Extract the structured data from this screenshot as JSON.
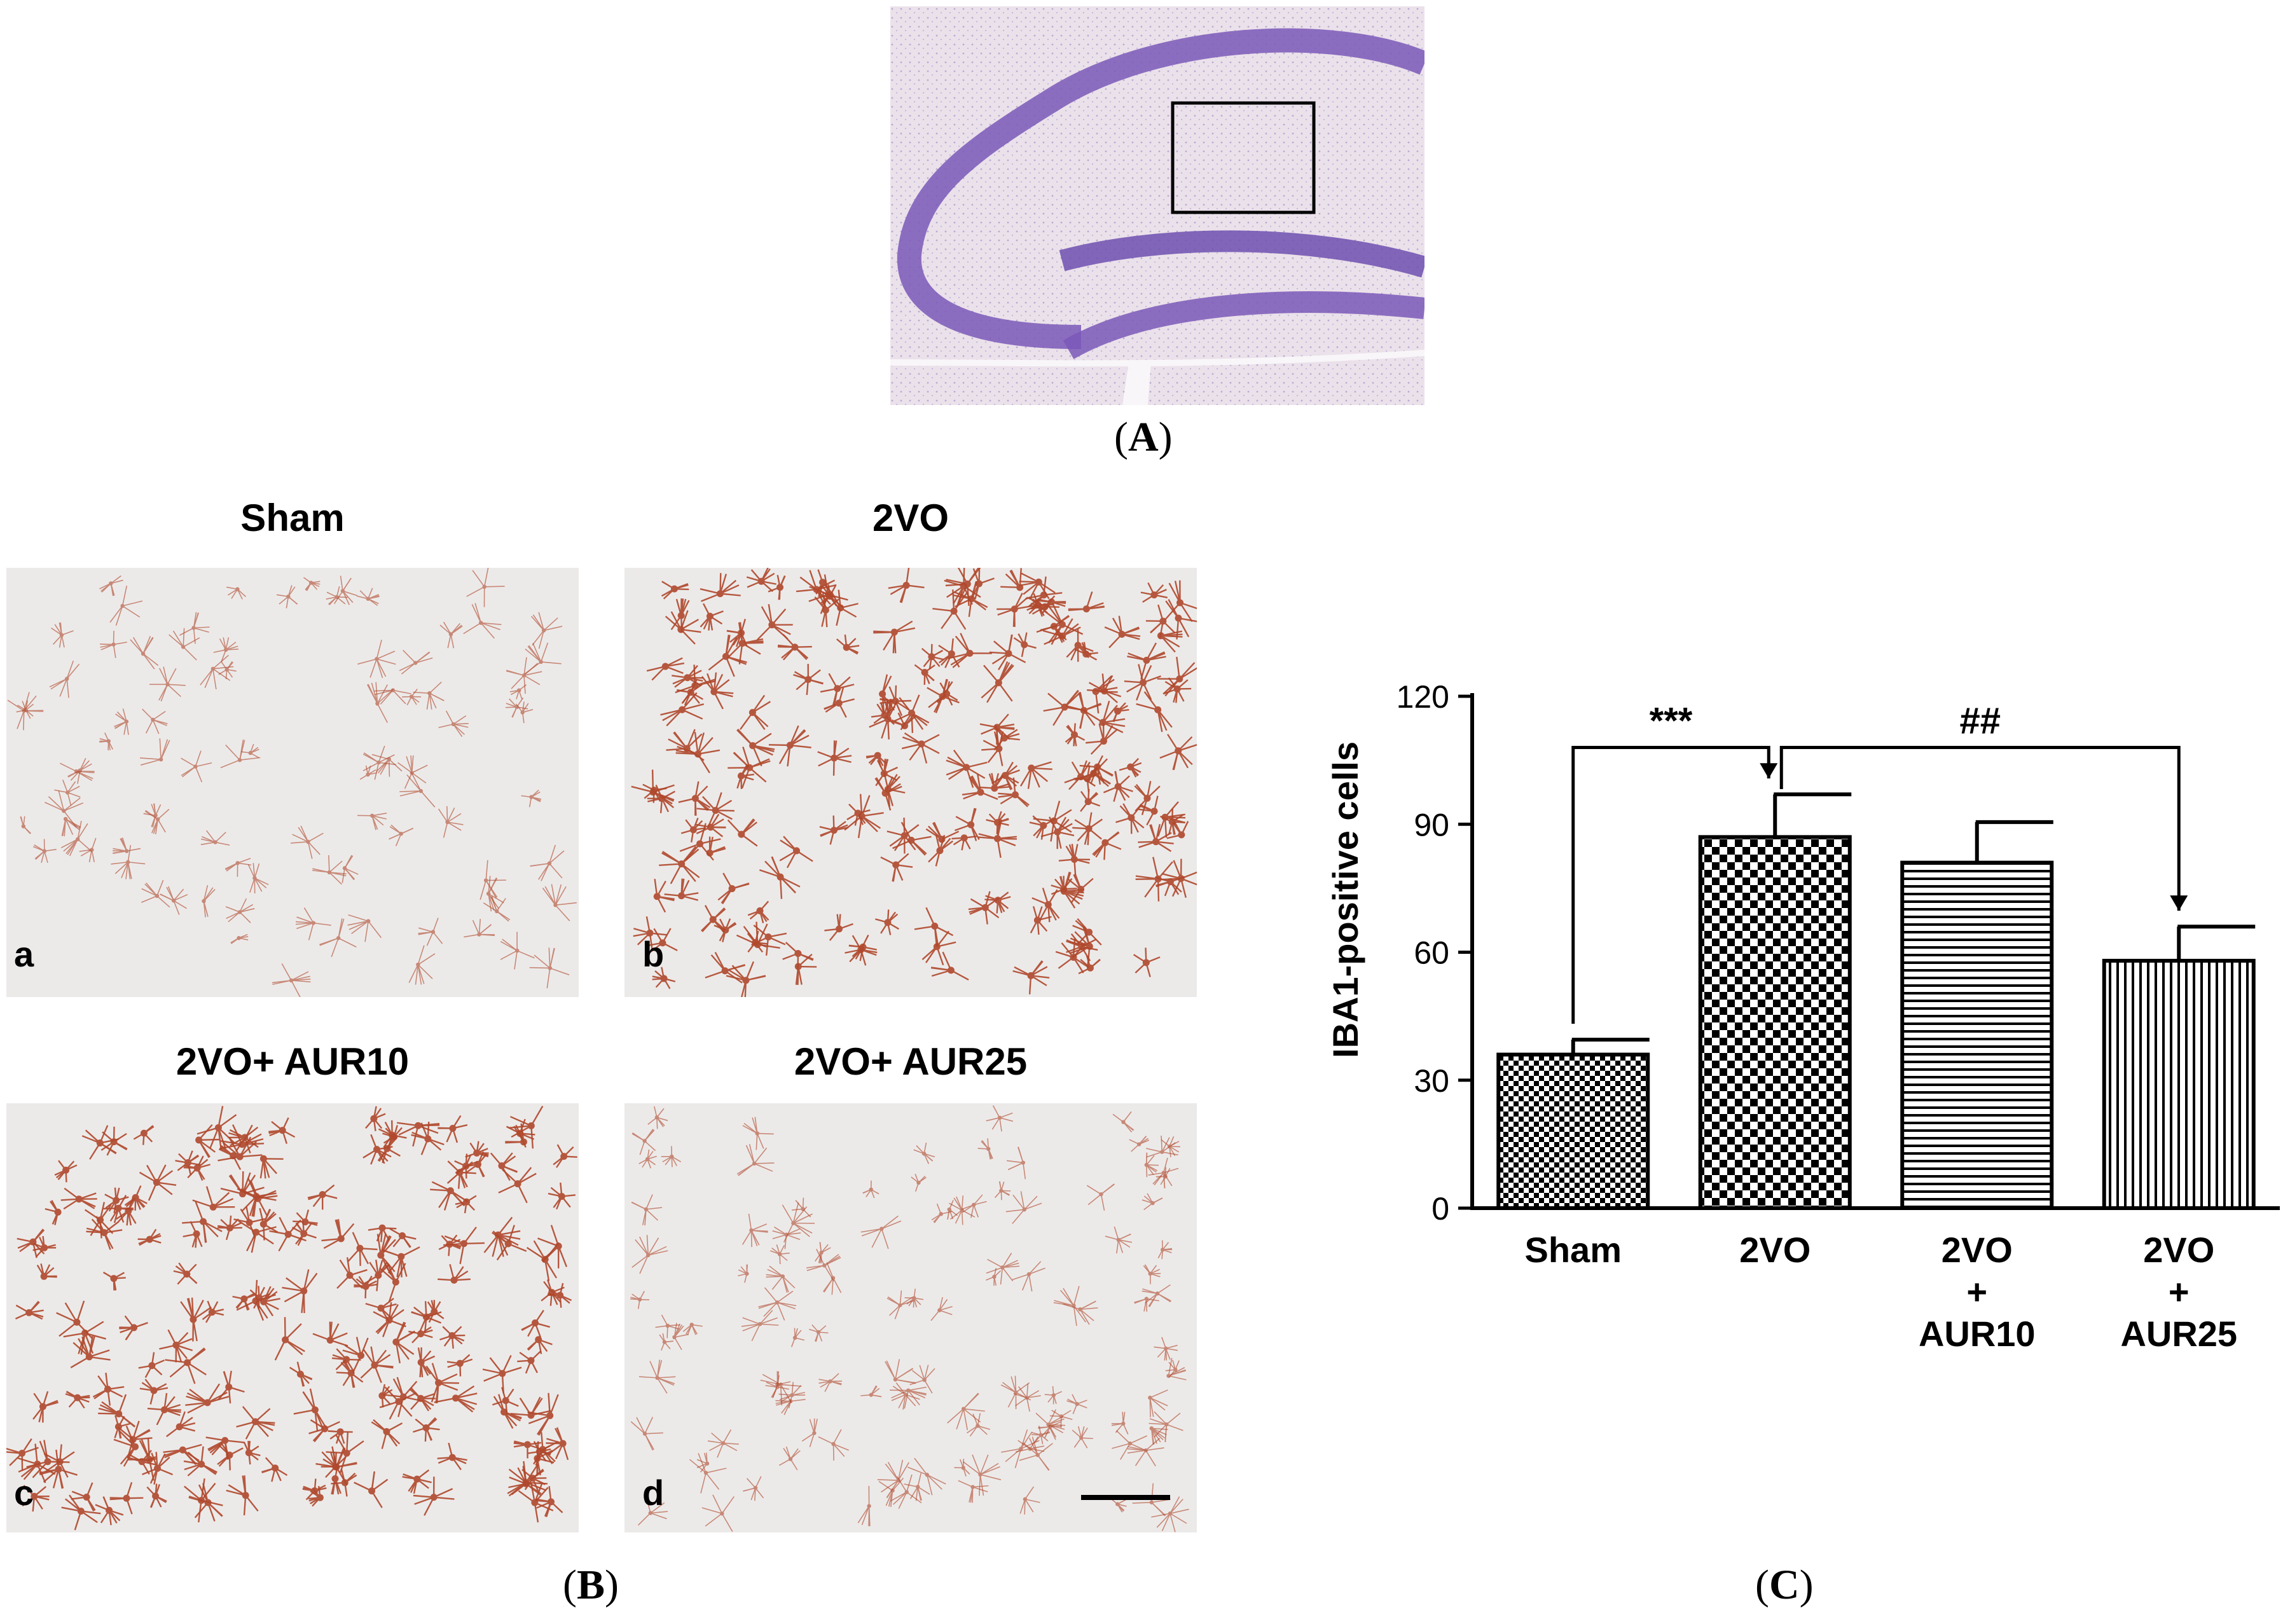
{
  "panel_a": {
    "caption_open": "(",
    "caption_letter": "A",
    "caption_close": ")"
  },
  "panel_b": {
    "caption_open": "(",
    "caption_letter": "B",
    "caption_close": ")",
    "images": [
      {
        "title": "Sham",
        "letter": "a",
        "density": "low"
      },
      {
        "title": "2VO",
        "letter": "b",
        "density": "high"
      },
      {
        "title": "2VO+ AUR10",
        "letter": "c",
        "density": "high"
      },
      {
        "title": "2VO+ AUR25",
        "letter": "d",
        "density": "medium"
      }
    ]
  },
  "panel_c": {
    "caption_open": "(",
    "caption_letter": "C",
    "caption_close": ")"
  },
  "chart_data": {
    "type": "bar",
    "categories": [
      [
        "Sham"
      ],
      [
        "2VO"
      ],
      [
        "2VO",
        "+",
        "AUR10"
      ],
      [
        "2VO",
        "+",
        "AUR25"
      ]
    ],
    "values": [
      36,
      87,
      81,
      58
    ],
    "errors": [
      3.5,
      10,
      9.5,
      8
    ],
    "patterns": [
      "checker-small",
      "checker-large",
      "horizontal-lines",
      "vertical-lines"
    ],
    "ylabel": "IBA1-positive cells",
    "ylim": [
      0,
      120
    ],
    "yticks": [
      0,
      30,
      60,
      90,
      120
    ],
    "significance": [
      {
        "from": 0,
        "to": 1,
        "label": "***"
      },
      {
        "from": 1,
        "to": 3,
        "label": "##"
      }
    ],
    "grid": false
  },
  "colors": {
    "stain": "#b0482c",
    "tissue": "#eceae9",
    "nissl": "#7a5cb8",
    "nissl_bg": "#e9dcea"
  }
}
